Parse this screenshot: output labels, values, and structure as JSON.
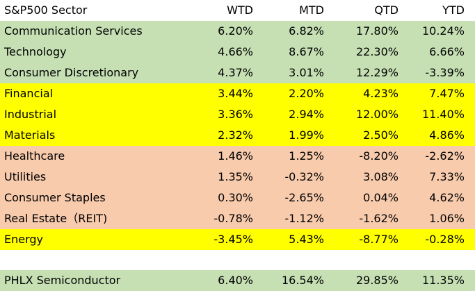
{
  "header": {
    "sector": "S&P500 Sector",
    "wtd": "WTD",
    "mtd": "MTD",
    "qtd": "QTD",
    "ytd": "YTD"
  },
  "colors": {
    "green": "#c6e0b4",
    "yellow": "#ffff00",
    "salmon": "#f8cbad"
  },
  "rows": [
    {
      "name": "Communication Services",
      "wtd": "6.20%",
      "mtd": "6.82%",
      "qtd": "17.80%",
      "ytd": "10.24%",
      "color": "green"
    },
    {
      "name": "Technology",
      "wtd": "4.66%",
      "mtd": "8.67%",
      "qtd": "22.30%",
      "ytd": "6.66%",
      "color": "green"
    },
    {
      "name": "Consumer Discretionary",
      "wtd": "4.37%",
      "mtd": "3.01%",
      "qtd": "12.29%",
      "ytd": "-3.39%",
      "color": "green"
    },
    {
      "name": "Financial",
      "wtd": "3.44%",
      "mtd": "2.20%",
      "qtd": "4.23%",
      "ytd": "7.47%",
      "color": "yellow"
    },
    {
      "name": "Industrial",
      "wtd": "3.36%",
      "mtd": "2.94%",
      "qtd": "12.00%",
      "ytd": "11.40%",
      "color": "yellow"
    },
    {
      "name": "Materials",
      "wtd": "2.32%",
      "mtd": "1.99%",
      "qtd": "2.50%",
      "ytd": "4.86%",
      "color": "yellow"
    },
    {
      "name": "Healthcare",
      "wtd": "1.46%",
      "mtd": "1.25%",
      "qtd": "-8.20%",
      "ytd": "-2.62%",
      "color": "salmon"
    },
    {
      "name": "Utilities",
      "wtd": "1.35%",
      "mtd": "-0.32%",
      "qtd": "3.08%",
      "ytd": "7.33%",
      "color": "salmon"
    },
    {
      "name": "Consumer Staples",
      "wtd": "0.30%",
      "mtd": "-2.65%",
      "qtd": "0.04%",
      "ytd": "4.62%",
      "color": "salmon"
    },
    {
      "name": "Real Estate（REIT)",
      "wtd": "-0.78%",
      "mtd": "-1.12%",
      "qtd": "-1.62%",
      "ytd": "1.06%",
      "color": "salmon"
    },
    {
      "name": "Energy",
      "wtd": "-3.45%",
      "mtd": "5.43%",
      "qtd": "-8.77%",
      "ytd": "-0.28%",
      "color": "yellow"
    }
  ],
  "extra_row": {
    "name": "PHLX Semiconductor",
    "wtd": "6.40%",
    "mtd": "16.54%",
    "qtd": "29.85%",
    "ytd": "11.35%",
    "color": "green"
  }
}
